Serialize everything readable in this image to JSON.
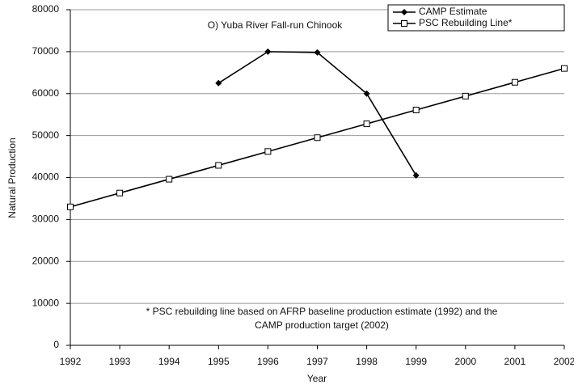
{
  "chart_data": {
    "type": "line",
    "title": "O) Yuba River Fall-run Chinook",
    "xlabel": "Year",
    "ylabel": "Natural Production",
    "x": [
      1992,
      1993,
      1994,
      1995,
      1996,
      1997,
      1998,
      1999,
      2000,
      2001,
      2002
    ],
    "series": [
      {
        "name": "CAMP Estimate",
        "color": "#000000",
        "marker": "diamond",
        "values": [
          null,
          null,
          null,
          62500,
          70000,
          69800,
          60000,
          40500,
          null,
          null,
          null
        ]
      },
      {
        "name": "PSC Rebuilding Line*",
        "color": "#000000",
        "marker": "square",
        "values": [
          33000,
          36300,
          39600,
          42900,
          46200,
          49500,
          52800,
          56100,
          59400,
          62700,
          66000
        ]
      }
    ],
    "annotation": [
      "* PSC rebuilding line based on AFRP baseline production estimate (1992) and the",
      "CAMP production target (2002)"
    ],
    "xlim": [
      1992,
      2002
    ],
    "xticks": [
      1992,
      1993,
      1994,
      1995,
      1996,
      1997,
      1998,
      1999,
      2000,
      2001,
      2002
    ],
    "ylim": [
      0,
      80000
    ],
    "yticks": [
      0,
      10000,
      20000,
      30000,
      40000,
      50000,
      60000,
      70000,
      80000
    ],
    "grid": true,
    "legend": "upper right"
  }
}
